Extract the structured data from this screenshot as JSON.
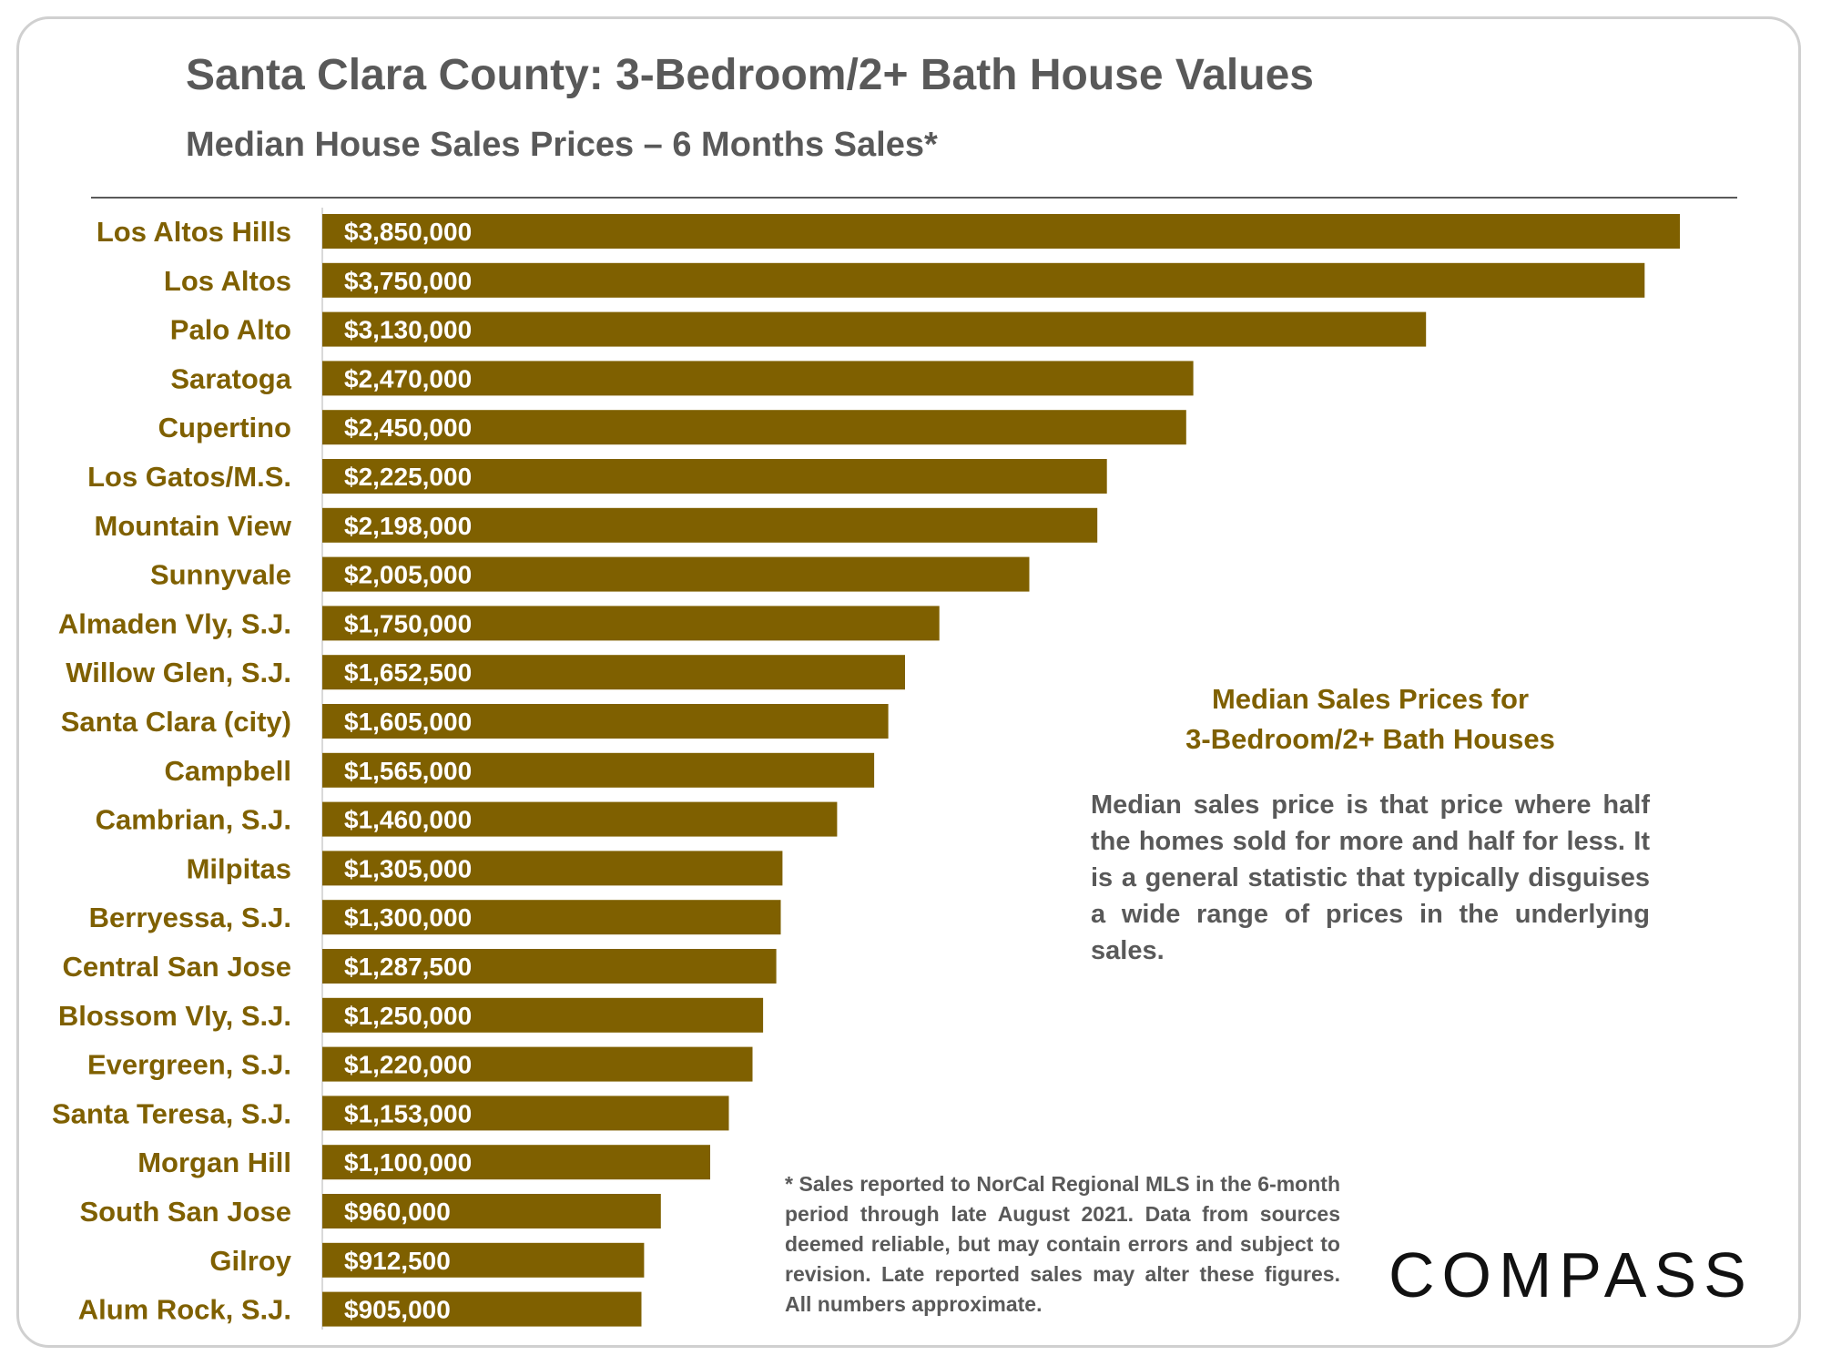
{
  "title": "Santa Clara County: 3-Bedroom/2+ Bath House Values",
  "subtitle": "Median House Sales Prices – 6 Months Sales*",
  "note": {
    "title_line1": "Median Sales Prices for",
    "title_line2": "3-Bedroom/2+ Bath Houses",
    "body": "Median sales price is that price where half the homes sold for more and half for less. It is a general statistic that typically disguises a wide range of prices in the underlying sales."
  },
  "footnote": "* Sales reported to NorCal Regional MLS in the 6-month period through late August 2021. Data from sources deemed reliable, but may contain errors and subject to revision. Late reported sales may alter these figures. All numbers approximate.",
  "logo": "COMPASS",
  "colors": {
    "bar": "#7f6000",
    "label": "#7f6000",
    "text": "#595959"
  },
  "chart_data": {
    "type": "bar",
    "orientation": "horizontal",
    "title": "Santa Clara County: 3-Bedroom/2+ Bath House Values",
    "subtitle": "Median House Sales Prices – 6 Months Sales*",
    "categories": [
      "Los Altos Hills",
      "Los Altos",
      "Palo Alto",
      "Saratoga",
      "Cupertino",
      "Los Gatos/M.S.",
      "Mountain View",
      "Sunnyvale",
      "Almaden Vly, S.J.",
      "Willow Glen, S.J.",
      "Santa Clara (city)",
      "Campbell",
      "Cambrian, S.J.",
      "Milpitas",
      "Berryessa, S.J.",
      "Central San Jose",
      "Blossom Vly, S.J.",
      "Evergreen, S.J.",
      "Santa Teresa, S.J.",
      "Morgan Hill",
      "South San Jose",
      "Gilroy",
      "Alum Rock, S.J."
    ],
    "values": [
      3850000,
      3750000,
      3130000,
      2470000,
      2450000,
      2225000,
      2198000,
      2005000,
      1750000,
      1652500,
      1605000,
      1565000,
      1460000,
      1305000,
      1300000,
      1287500,
      1250000,
      1220000,
      1153000,
      1100000,
      960000,
      912500,
      905000
    ],
    "value_labels": [
      "$3,850,000",
      "$3,750,000",
      "$3,130,000",
      "$2,470,000",
      "$2,450,000",
      "$2,225,000",
      "$2,198,000",
      "$2,005,000",
      "$1,750,000",
      "$1,652,500",
      "$1,605,000",
      "$1,565,000",
      "$1,460,000",
      "$1,305,000",
      "$1,300,000",
      "$1,287,500",
      "$1,250,000",
      "$1,220,000",
      "$1,153,000",
      "$1,100,000",
      "$960,000",
      "$912,500",
      "$905,000"
    ],
    "xlim": [
      0,
      3900000
    ],
    "grid": false,
    "legend": false
  }
}
